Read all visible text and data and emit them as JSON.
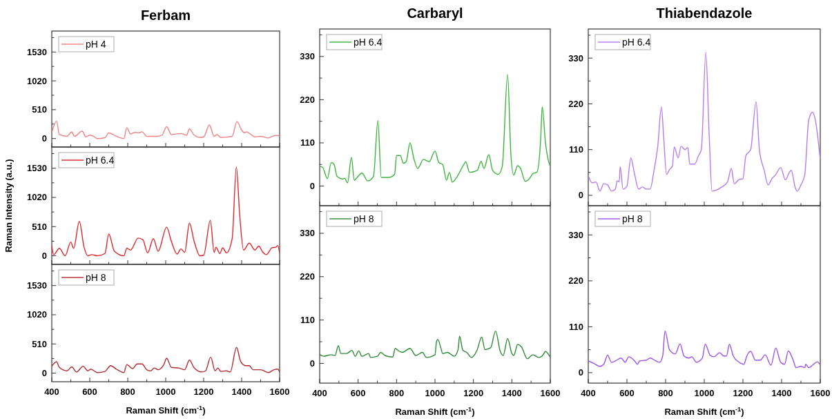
{
  "chart_data": [
    {
      "type": "line",
      "title": "Ferbam",
      "legend": "top left",
      "tick_labels": "y",
      "xlim": [
        400,
        1600
      ],
      "xticks": [
        400,
        {
          "value": 500,
          "label": null
        },
        600,
        {
          "value": 700,
          "label": null
        },
        800,
        {
          "value": 900,
          "label": null
        },
        1000,
        {
          "value": 1100,
          "label": null
        },
        1200,
        {
          "value": 1300,
          "label": null
        },
        1400,
        {
          "value": 1500,
          "label": null
        },
        1600
      ],
      "ylim": [
        -150,
        1900
      ],
      "yticks": [
        0,
        {
          "value": 255,
          "label": null
        },
        510,
        {
          "value": 765,
          "label": null
        },
        1020,
        {
          "value": 1275,
          "label": null
        },
        1530,
        {
          "value": 1785,
          "label": null
        }
      ],
      "series": [
        {
          "name": "pH 4",
          "color": "#f28080",
          "x": [
            400,
            425,
            440,
            480,
            505,
            520,
            560,
            580,
            600,
            620,
            640,
            680,
            700,
            740,
            780,
            795,
            815,
            840,
            860,
            875,
            900,
            950,
            980,
            1005,
            1030,
            1080,
            1110,
            1125,
            1150,
            1180,
            1200,
            1230,
            1255,
            1270,
            1290,
            1320,
            1350,
            1375,
            1400,
            1415,
            1425,
            1445,
            1470,
            1500,
            1540,
            1570,
            1590,
            1600
          ],
          "values": [
            100,
            306,
            70,
            40,
            115,
            40,
            130,
            30,
            60,
            40,
            0,
            15,
            100,
            40,
            0,
            190,
            80,
            110,
            100,
            120,
            40,
            40,
            60,
            210,
            70,
            90,
            60,
            170,
            60,
            20,
            30,
            240,
            40,
            70,
            20,
            25,
            40,
            300,
            150,
            100,
            120,
            80,
            30,
            40,
            10,
            50,
            55,
            40
          ]
        }
      ]
    },
    {
      "type": "line",
      "ylabel": "Raman Intensity (a.u.)",
      "legend": "top left",
      "tick_labels": "y",
      "xlim": [
        400,
        1600
      ],
      "xticks": [
        400,
        {
          "value": 500,
          "label": null
        },
        600,
        {
          "value": 700,
          "label": null
        },
        800,
        {
          "value": 900,
          "label": null
        },
        1000,
        {
          "value": 1100,
          "label": null
        },
        1200,
        {
          "value": 1300,
          "label": null
        },
        1400,
        {
          "value": 1500,
          "label": null
        },
        1600
      ],
      "ylim": [
        -150,
        1900
      ],
      "yticks": [
        0,
        {
          "value": 255,
          "label": null
        },
        510,
        {
          "value": 765,
          "label": null
        },
        1020,
        {
          "value": 1275,
          "label": null
        },
        1530,
        {
          "value": 1785,
          "label": null
        }
      ],
      "series": [
        {
          "name": "pH 6.4",
          "color": "#e0262b",
          "x": [
            400,
            410,
            440,
            470,
            500,
            515,
            545,
            570,
            590,
            610,
            640,
            680,
            700,
            730,
            780,
            795,
            815,
            855,
            880,
            905,
            935,
            960,
            1005,
            1030,
            1060,
            1080,
            1100,
            1125,
            1150,
            1180,
            1200,
            1235,
            1255,
            1265,
            1285,
            1300,
            1320,
            1350,
            1372,
            1390,
            1410,
            1440,
            1470,
            1490,
            1510,
            1530,
            1560,
            1580,
            1590,
            1600
          ],
          "values": [
            180,
            20,
            130,
            0,
            240,
            130,
            600,
            150,
            0,
            20,
            0,
            40,
            380,
            80,
            0,
            130,
            100,
            310,
            280,
            50,
            300,
            80,
            500,
            250,
            30,
            120,
            60,
            570,
            250,
            0,
            10,
            620,
            60,
            150,
            40,
            140,
            50,
            300,
            1550,
            700,
            100,
            220,
            100,
            170,
            70,
            20,
            140,
            150,
            180,
            40
          ]
        }
      ]
    },
    {
      "type": "line",
      "xlabel": "Raman Shift (cm$^{-1}$)",
      "legend": "top left",
      "xlim": [
        400,
        1600
      ],
      "xticks": [
        400,
        {
          "value": 500,
          "label": null
        },
        600,
        {
          "value": 700,
          "label": null
        },
        800,
        {
          "value": 900,
          "label": null
        },
        1000,
        {
          "value": 1100,
          "label": null
        },
        1200,
        {
          "value": 1300,
          "label": null
        },
        1400,
        {
          "value": 1500,
          "label": null
        },
        1600
      ],
      "ylim": [
        -150,
        1900
      ],
      "yticks": [
        0,
        {
          "value": 255,
          "label": null
        },
        510,
        {
          "value": 765,
          "label": null
        },
        1020,
        {
          "value": 1275,
          "label": null
        },
        1530,
        {
          "value": 1785,
          "label": null
        }
      ],
      "series": [
        {
          "name": "pH 8",
          "color": "#b02a30",
          "x": [
            400,
            425,
            440,
            480,
            505,
            530,
            565,
            590,
            605,
            640,
            680,
            710,
            740,
            780,
            795,
            825,
            850,
            875,
            900,
            920,
            940,
            960,
            990,
            1005,
            1030,
            1070,
            1100,
            1125,
            1150,
            1190,
            1210,
            1237,
            1260,
            1275,
            1290,
            1320,
            1340,
            1373,
            1395,
            1420,
            1440,
            1460,
            1500,
            1540,
            1570,
            1590,
            1600
          ],
          "values": [
            120,
            200,
            100,
            40,
            110,
            20,
            120,
            40,
            70,
            10,
            30,
            130,
            70,
            10,
            150,
            80,
            160,
            160,
            60,
            40,
            90,
            60,
            150,
            260,
            100,
            90,
            60,
            230,
            90,
            20,
            40,
            280,
            40,
            90,
            30,
            40,
            20,
            450,
            200,
            130,
            130,
            60,
            60,
            10,
            60,
            70,
            20
          ]
        }
      ]
    },
    {
      "type": "line",
      "title": "Carbaryl",
      "legend": "top left",
      "tick_labels": "y",
      "xlim": [
        400,
        1600
      ],
      "xticks": [
        400,
        {
          "value": 500,
          "label": null
        },
        600,
        {
          "value": 700,
          "label": null
        },
        800,
        {
          "value": 900,
          "label": null
        },
        1000,
        {
          "value": 1100,
          "label": null
        },
        1200,
        {
          "value": 1300,
          "label": null
        },
        1400,
        {
          "value": 1500,
          "label": null
        },
        1600
      ],
      "ylim": [
        -50,
        400
      ],
      "yticks": [
        0,
        {
          "value": 55,
          "label": null
        },
        110,
        {
          "value": 165,
          "label": null
        },
        220,
        {
          "value": 275,
          "label": null
        },
        330,
        {
          "value": 385,
          "label": null
        }
      ],
      "series": [
        {
          "name": "pH 6.4",
          "color": "#3cb43c",
          "x": [
            400,
            415,
            440,
            460,
            475,
            490,
            520,
            530,
            545,
            565,
            580,
            600,
            620,
            650,
            680,
            703,
            720,
            760,
            790,
            800,
            820,
            835,
            850,
            870,
            890,
            910,
            940,
            970,
            1000,
            1020,
            1040,
            1060,
            1075,
            1090,
            1110,
            1150,
            1160,
            1180,
            1220,
            1240,
            1255,
            1280,
            1300,
            1330,
            1350,
            1378,
            1395,
            1410,
            1430,
            1445,
            1470,
            1490,
            1510,
            1530,
            1550,
            1558,
            1575,
            1590,
            1600
          ],
          "values": [
            50,
            48,
            19,
            60,
            55,
            25,
            18,
            20,
            8,
            73,
            15,
            25,
            33,
            13,
            25,
            167,
            22,
            22,
            30,
            78,
            78,
            58,
            62,
            110,
            70,
            45,
            68,
            62,
            89,
            60,
            55,
            15,
            35,
            10,
            20,
            55,
            62,
            35,
            40,
            63,
            45,
            80,
            40,
            30,
            50,
            284,
            80,
            28,
            52,
            45,
            12,
            18,
            32,
            35,
            120,
            202,
            110,
            65,
            50
          ]
        }
      ]
    },
    {
      "type": "line",
      "xlabel": "Raman Shift (cm$^{-1}$)",
      "legend": "top left",
      "xlim": [
        400,
        1600
      ],
      "xticks": [
        400,
        {
          "value": 500,
          "label": null
        },
        600,
        {
          "value": 700,
          "label": null
        },
        800,
        {
          "value": 900,
          "label": null
        },
        1000,
        {
          "value": 1100,
          "label": null
        },
        1200,
        {
          "value": 1300,
          "label": null
        },
        1400,
        {
          "value": 1500,
          "label": null
        },
        1600
      ],
      "ylim": [
        -50,
        400
      ],
      "yticks": [
        0,
        {
          "value": 55,
          "label": null
        },
        110,
        {
          "value": 165,
          "label": null
        },
        220,
        {
          "value": 275,
          "label": null
        },
        330,
        {
          "value": 385,
          "label": null
        }
      ],
      "series": [
        {
          "name": "pH 8",
          "color": "#2e8a35",
          "x": [
            400,
            420,
            460,
            480,
            497,
            510,
            540,
            568,
            585,
            603,
            620,
            655,
            665,
            700,
            718,
            740,
            780,
            793,
            810,
            830,
            870,
            900,
            935,
            955,
            1000,
            1008,
            1015,
            1030,
            1040,
            1065,
            1100,
            1120,
            1128,
            1145,
            1165,
            1190,
            1220,
            1243,
            1260,
            1290,
            1315,
            1340,
            1355,
            1378,
            1400,
            1410,
            1430,
            1450,
            1480,
            1510,
            1540,
            1560,
            1575,
            1600
          ],
          "values": [
            23,
            18,
            22,
            20,
            45,
            25,
            25,
            33,
            18,
            32,
            18,
            25,
            15,
            18,
            28,
            20,
            16,
            38,
            32,
            28,
            38,
            20,
            28,
            15,
            22,
            55,
            61,
            40,
            25,
            28,
            18,
            35,
            69,
            33,
            28,
            15,
            35,
            67,
            35,
            40,
            82,
            30,
            20,
            63,
            25,
            20,
            48,
            42,
            12,
            22,
            15,
            20,
            30,
            15
          ]
        }
      ]
    },
    {
      "type": "line",
      "title": "Thiabendazole",
      "legend": "top left",
      "tick_labels": "y",
      "xlim": [
        400,
        1600
      ],
      "xticks": [
        400,
        {
          "value": 500,
          "label": null
        },
        600,
        {
          "value": 700,
          "label": null
        },
        800,
        {
          "value": 900,
          "label": null
        },
        1000,
        {
          "value": 1100,
          "label": null
        },
        1200,
        {
          "value": 1300,
          "label": null
        },
        1400,
        {
          "value": 1500,
          "label": null
        },
        1600
      ],
      "ylim": [
        -25,
        400
      ],
      "yticks": [
        0,
        {
          "value": 55,
          "label": null
        },
        110,
        {
          "value": 165,
          "label": null
        },
        220,
        {
          "value": 275,
          "label": null
        },
        330,
        {
          "value": 385,
          "label": null
        }
      ],
      "series": [
        {
          "name": "pH 6.4",
          "color": "#b57cf2",
          "x": [
            400,
            420,
            440,
            460,
            480,
            500,
            520,
            540,
            550,
            560,
            565,
            580,
            600,
            620,
            640,
            660,
            680,
            700,
            720,
            740,
            760,
            778,
            790,
            805,
            820,
            835,
            845,
            865,
            880,
            900,
            915,
            925,
            950,
            970,
            985,
            1008,
            1025,
            1040,
            1060,
            1090,
            1120,
            1140,
            1155,
            1180,
            1200,
            1215,
            1240,
            1268,
            1285,
            1310,
            1330,
            1350,
            1370,
            1395,
            1420,
            1440,
            1450,
            1470,
            1480,
            1500,
            1520,
            1540,
            1560,
            1575,
            1600
          ],
          "values": [
            48,
            30,
            32,
            10,
            28,
            25,
            10,
            15,
            35,
            32,
            69,
            15,
            22,
            90,
            50,
            15,
            20,
            15,
            15,
            60,
            120,
            213,
            140,
            50,
            62,
            70,
            116,
            90,
            118,
            110,
            115,
            75,
            75,
            95,
            110,
            344,
            150,
            10,
            12,
            20,
            32,
            65,
            28,
            38,
            40,
            95,
            110,
            225,
            110,
            60,
            25,
            40,
            50,
            67,
            37,
            55,
            60,
            20,
            10,
            25,
            50,
            180,
            200,
            180,
            85
          ]
        }
      ]
    },
    {
      "type": "line",
      "xlabel": "Raman Shift (cm$^{-1}$)",
      "legend": "top left",
      "xlim": [
        400,
        1600
      ],
      "xticks": [
        400,
        {
          "value": 500,
          "label": null
        },
        600,
        {
          "value": 700,
          "label": null
        },
        800,
        {
          "value": 900,
          "label": null
        },
        1000,
        {
          "value": 1100,
          "label": null
        },
        1200,
        {
          "value": 1300,
          "label": null
        },
        1400,
        {
          "value": 1500,
          "label": null
        },
        1600
      ],
      "ylim": [
        -25,
        400
      ],
      "yticks": [
        0,
        {
          "value": 55,
          "label": null
        },
        110,
        {
          "value": 165,
          "label": null
        },
        220,
        {
          "value": 275,
          "label": null
        },
        330,
        {
          "value": 385,
          "label": null
        }
      ],
      "series": [
        {
          "name": "pH 8",
          "color": "#9d52ea",
          "x": [
            400,
            430,
            460,
            480,
            500,
            520,
            540,
            570,
            590,
            610,
            640,
            655,
            665,
            700,
            720,
            750,
            770,
            785,
            797,
            820,
            850,
            875,
            895,
            920,
            935,
            960,
            990,
            1005,
            1030,
            1050,
            1080,
            1100,
            1115,
            1130,
            1150,
            1180,
            1205,
            1220,
            1240,
            1265,
            1290,
            1315,
            1345,
            1370,
            1395,
            1415,
            1435,
            1460,
            1475,
            1500,
            1520,
            1525,
            1540,
            1560,
            1585,
            1600
          ],
          "values": [
            28,
            22,
            15,
            20,
            42,
            25,
            28,
            35,
            25,
            38,
            28,
            20,
            28,
            30,
            35,
            28,
            25,
            40,
            100,
            55,
            45,
            69,
            40,
            35,
            38,
            25,
            35,
            68,
            42,
            38,
            48,
            40,
            40,
            68,
            40,
            25,
            20,
            40,
            51,
            30,
            30,
            43,
            18,
            59,
            25,
            20,
            52,
            30,
            12,
            15,
            12,
            20,
            12,
            18,
            26,
            18
          ]
        }
      ]
    }
  ]
}
